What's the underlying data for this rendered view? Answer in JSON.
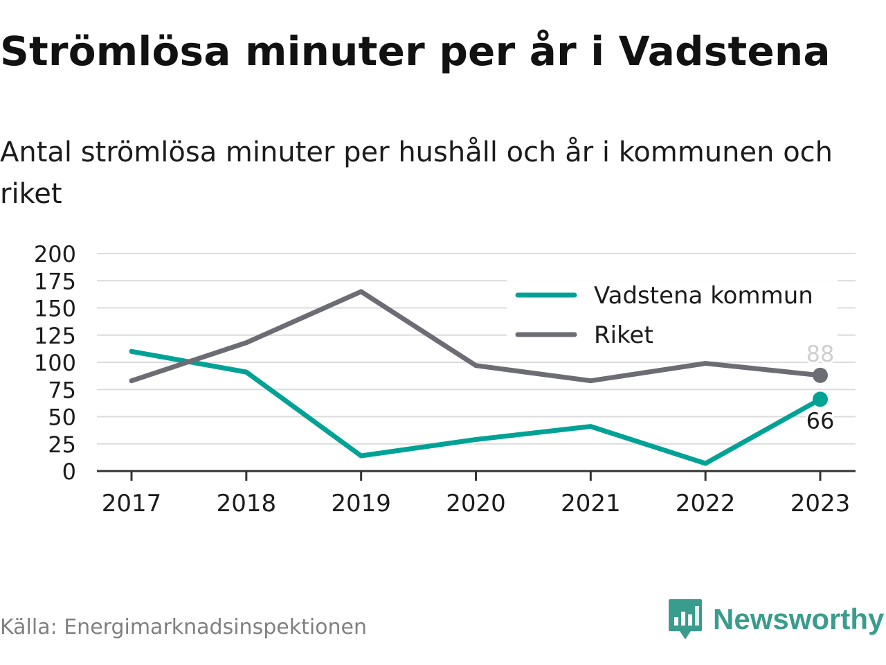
{
  "title": "Strömlösa minuter per år i Vadstena",
  "subtitle": "Antal strömlösa minuter per hushåll och år i kommunen och riket",
  "source": "Källa: Energimarknadsinspektionen",
  "brand": "Newsworthy",
  "chart_data": {
    "type": "line",
    "x": [
      "2017",
      "2018",
      "2019",
      "2020",
      "2021",
      "2022",
      "2023"
    ],
    "ylim": [
      0,
      200
    ],
    "yticks": [
      0,
      25,
      50,
      75,
      100,
      125,
      150,
      175,
      200
    ],
    "grid": true,
    "legend_position": "top-right",
    "series": [
      {
        "name": "Vadstena kommun",
        "color": "#00a295",
        "values": [
          110,
          91,
          14,
          29,
          41,
          7,
          66
        ],
        "end_label": "66"
      },
      {
        "name": "Riket",
        "color": "#6c6c74",
        "values": [
          83,
          118,
          165,
          97,
          83,
          99,
          88
        ],
        "end_label": "88"
      }
    ]
  }
}
